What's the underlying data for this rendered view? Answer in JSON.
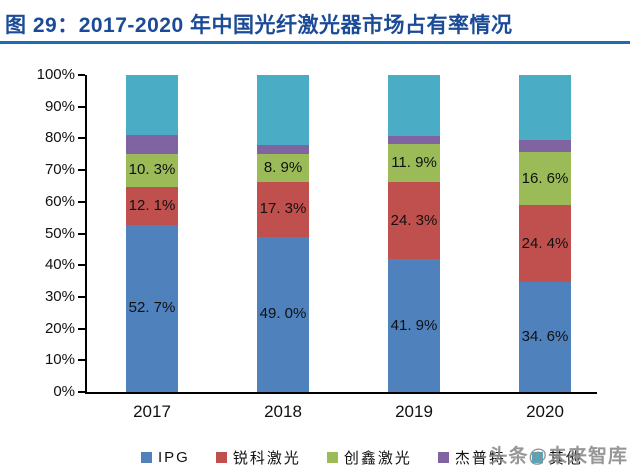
{
  "header": {
    "title": "图 29：2017-2020 年中国光纤激光器市场占有率情况"
  },
  "watermark": "头条@未来智库",
  "chart_data": {
    "type": "bar",
    "subtype": "stacked-percent",
    "title": "图 29：2017-2020 年中国光纤激光器市场占有率情况",
    "categories": [
      "2017",
      "2018",
      "2019",
      "2020"
    ],
    "series": [
      {
        "name": "IPG",
        "color": "#4f81bd",
        "values": [
          52.7,
          49.0,
          41.9,
          34.6
        ],
        "labels": [
          "52. 7%",
          "49. 0%",
          "41. 9%",
          "34. 6%"
        ]
      },
      {
        "name": "锐科激光",
        "color": "#c0504d",
        "values": [
          12.1,
          17.3,
          24.3,
          24.4
        ],
        "labels": [
          "12. 1%",
          "17. 3%",
          "24. 3%",
          "24. 4%"
        ]
      },
      {
        "name": "创鑫激光",
        "color": "#9bbb59",
        "values": [
          10.3,
          8.9,
          11.9,
          16.6
        ],
        "labels": [
          "10. 3%",
          "8. 9%",
          "11. 9%",
          "16. 6%"
        ]
      },
      {
        "name": "杰普特",
        "color": "#8064a2",
        "values": [
          6.1,
          2.8,
          2.7,
          3.9
        ],
        "labels": [
          "",
          "",
          "",
          ""
        ]
      },
      {
        "name": "其他",
        "color": "#4bacc6",
        "values": [
          18.8,
          22.0,
          19.2,
          20.5
        ],
        "labels": [
          "",
          "",
          "",
          ""
        ]
      }
    ],
    "xlabel": "",
    "ylabel": "",
    "ylim": [
      0,
      100
    ],
    "yticks": [
      "0%",
      "10%",
      "20%",
      "30%",
      "40%",
      "50%",
      "60%",
      "70%",
      "80%",
      "90%",
      "100%"
    ],
    "grid": false,
    "legend_position": "bottom",
    "colors": {
      "title_text": "#1b4a96",
      "title_underline": "#1e6cb5",
      "axis": "#000000",
      "label_text": "#111111",
      "watermark_gray": "#8c8c8c"
    }
  }
}
